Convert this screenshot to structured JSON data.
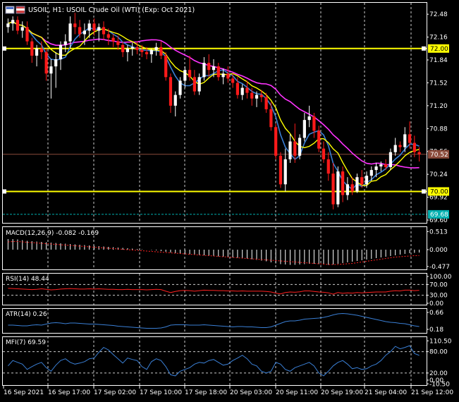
{
  "header": {
    "symbol": "USOIL",
    "timeframe": "H1",
    "title": "USOIL, H1:  USOIL Crude Oil (WTI) (Exp: Oct 2021)"
  },
  "colors": {
    "background": "#000000",
    "bull": "#ffffff",
    "bear": "#ff1a1a",
    "ma_fast": "#ffff00",
    "ma_mid": "#3a7fd5",
    "ma_slow": "#ff33ff",
    "hline": "#ffff00",
    "price_line": "#8a4a3a",
    "bid_line": "#00b0b0",
    "macd_signal": "#ff2020",
    "rsi": "#ff2020",
    "atr": "#3a7fd5",
    "mfi": "#3a7fd5",
    "grid": "#ffffff"
  },
  "chart_data": [
    {
      "type": "candlestick",
      "name": "USOIL, H1",
      "ylim": [
        69.6,
        72.6
      ],
      "yticks": [
        "72.48",
        "72.16",
        "71.84",
        "71.52",
        "71.20",
        "70.88",
        "70.56",
        "70.24",
        "69.92",
        "69.60"
      ],
      "hlines": [
        {
          "value": 72.0,
          "label": "72.00"
        },
        {
          "value": 70.0,
          "label": "70.00"
        }
      ],
      "current_price": {
        "value": 70.52,
        "label": "70.52"
      },
      "bid_line": {
        "value": 69.68,
        "label": "69.68"
      },
      "ohlc": [
        [
          72.3,
          72.42,
          72.22,
          72.35
        ],
        [
          72.35,
          72.45,
          72.25,
          72.4
        ],
        [
          72.4,
          72.45,
          72.2,
          72.25
        ],
        [
          72.25,
          72.38,
          72.15,
          72.3
        ],
        [
          72.3,
          72.38,
          72.05,
          72.1
        ],
        [
          72.1,
          72.15,
          71.8,
          71.9
        ],
        [
          71.9,
          72.05,
          71.75,
          72.0
        ],
        [
          72.0,
          72.1,
          71.85,
          71.95
        ],
        [
          71.95,
          72.0,
          71.55,
          71.65
        ],
        [
          71.65,
          71.85,
          71.3,
          71.75
        ],
        [
          71.75,
          71.95,
          71.45,
          71.85
        ],
        [
          71.85,
          72.1,
          71.7,
          72.05
        ],
        [
          72.05,
          72.2,
          71.95,
          72.1
        ],
        [
          72.1,
          72.45,
          72.0,
          72.35
        ],
        [
          72.35,
          72.5,
          72.2,
          72.3
        ],
        [
          72.3,
          72.4,
          72.15,
          72.2
        ],
        [
          72.2,
          72.35,
          72.05,
          72.25
        ],
        [
          72.25,
          72.4,
          72.15,
          72.35
        ],
        [
          72.35,
          72.42,
          72.18,
          72.25
        ],
        [
          72.25,
          72.35,
          72.1,
          72.3
        ],
        [
          72.3,
          72.38,
          72.12,
          72.2
        ],
        [
          72.2,
          72.28,
          72.05,
          72.15
        ],
        [
          72.15,
          72.2,
          72.02,
          72.1
        ],
        [
          72.1,
          72.18,
          71.98,
          72.05
        ],
        [
          72.05,
          72.1,
          71.88,
          71.95
        ],
        [
          71.95,
          72.05,
          71.82,
          72.0
        ],
        [
          72.0,
          72.08,
          71.9,
          72.02
        ],
        [
          72.02,
          72.1,
          71.92,
          71.98
        ],
        [
          71.98,
          72.05,
          71.88,
          71.95
        ],
        [
          71.95,
          72.02,
          71.85,
          71.92
        ],
        [
          71.92,
          72.0,
          71.8,
          71.98
        ],
        [
          71.98,
          72.08,
          71.9,
          72.02
        ],
        [
          72.02,
          72.1,
          71.85,
          71.9
        ],
        [
          71.9,
          71.95,
          71.55,
          71.6
        ],
        [
          71.6,
          71.65,
          71.1,
          71.2
        ],
        [
          71.2,
          71.4,
          71.05,
          71.35
        ],
        [
          71.35,
          71.6,
          71.3,
          71.55
        ],
        [
          71.55,
          71.75,
          71.45,
          71.7
        ],
        [
          71.7,
          71.9,
          71.55,
          71.6
        ],
        [
          71.6,
          71.7,
          71.35,
          71.4
        ],
        [
          71.4,
          71.65,
          71.35,
          71.6
        ],
        [
          71.6,
          71.88,
          71.55,
          71.8
        ],
        [
          71.8,
          71.92,
          71.6,
          71.7
        ],
        [
          71.7,
          71.85,
          71.6,
          71.75
        ],
        [
          71.75,
          71.8,
          71.55,
          71.6
        ],
        [
          71.6,
          71.72,
          71.5,
          71.65
        ],
        [
          71.65,
          71.75,
          71.52,
          71.58
        ],
        [
          71.58,
          71.65,
          71.45,
          71.52
        ],
        [
          71.52,
          71.6,
          71.3,
          71.35
        ],
        [
          71.35,
          71.5,
          71.28,
          71.45
        ],
        [
          71.45,
          71.55,
          71.3,
          71.38
        ],
        [
          71.38,
          71.45,
          71.2,
          71.3
        ],
        [
          71.3,
          71.4,
          71.18,
          71.35
        ],
        [
          71.35,
          71.42,
          71.25,
          71.32
        ],
        [
          71.32,
          71.38,
          71.1,
          71.15
        ],
        [
          71.15,
          71.25,
          70.85,
          70.9
        ],
        [
          70.9,
          70.95,
          70.45,
          70.5
        ],
        [
          70.5,
          70.55,
          70.05,
          70.1
        ],
        [
          70.1,
          70.6,
          70.0,
          70.45
        ],
        [
          70.45,
          70.8,
          70.4,
          70.7
        ],
        [
          70.7,
          70.95,
          70.4,
          70.5
        ],
        [
          70.5,
          70.8,
          70.45,
          70.75
        ],
        [
          70.75,
          71.1,
          70.7,
          71.0
        ],
        [
          71.0,
          71.2,
          70.9,
          71.05
        ],
        [
          71.05,
          71.1,
          70.75,
          70.85
        ],
        [
          70.85,
          70.92,
          70.55,
          70.6
        ],
        [
          70.6,
          70.7,
          70.4,
          70.45
        ],
        [
          70.45,
          70.55,
          70.15,
          70.25
        ],
        [
          70.25,
          70.4,
          69.75,
          69.82
        ],
        [
          69.82,
          70.35,
          69.78,
          70.28
        ],
        [
          70.28,
          70.35,
          69.85,
          69.95
        ],
        [
          69.95,
          70.2,
          69.88,
          70.1
        ],
        [
          70.1,
          70.2,
          69.95,
          70.0
        ],
        [
          70.0,
          70.25,
          69.98,
          70.2
        ],
        [
          70.2,
          70.3,
          70.05,
          70.1
        ],
        [
          70.1,
          70.28,
          70.05,
          70.22
        ],
        [
          70.22,
          70.35,
          70.15,
          70.3
        ],
        [
          70.3,
          70.4,
          70.2,
          70.35
        ],
        [
          70.35,
          70.42,
          70.28,
          70.38
        ],
        [
          70.38,
          70.45,
          70.3,
          70.34
        ],
        [
          70.34,
          70.6,
          70.3,
          70.55
        ],
        [
          70.55,
          70.75,
          70.5,
          70.65
        ],
        [
          70.65,
          70.7,
          70.55,
          70.62
        ],
        [
          70.62,
          70.9,
          70.55,
          70.8
        ],
        [
          70.8,
          70.98,
          70.6,
          70.68
        ],
        [
          70.68,
          70.78,
          70.48,
          70.55
        ],
        [
          70.55,
          70.62,
          70.42,
          70.52
        ]
      ]
    },
    {
      "type": "histogram",
      "name": "MACD(12,26,9)",
      "label": "MACD(12,26,9) -0.082 -0.169",
      "ylim": [
        -0.52,
        0.56
      ],
      "yticks": [
        "0.513",
        "0.000",
        "-0.477"
      ],
      "series": [
        {
          "name": "MACD",
          "values": [
            0.3,
            0.3,
            0.29,
            0.27,
            0.25,
            0.24,
            0.23,
            0.22,
            0.21,
            0.2,
            0.19,
            0.18,
            0.17,
            0.16,
            0.15,
            0.14,
            0.13,
            0.12,
            0.11,
            0.1,
            0.09,
            0.08,
            0.07,
            0.06,
            0.05,
            0.04,
            0.03,
            0.02,
            0.01,
            0.0,
            -0.01,
            -0.02,
            -0.04,
            -0.06,
            -0.08,
            -0.1,
            -0.11,
            -0.12,
            -0.13,
            -0.14,
            -0.15,
            -0.16,
            -0.17,
            -0.18,
            -0.19,
            -0.2,
            -0.21,
            -0.22,
            -0.23,
            -0.24,
            -0.25,
            -0.27,
            -0.29,
            -0.31,
            -0.33,
            -0.36,
            -0.39,
            -0.41,
            -0.42,
            -0.43,
            -0.43,
            -0.42,
            -0.41,
            -0.4,
            -0.4,
            -0.41,
            -0.42,
            -0.43,
            -0.42,
            -0.4,
            -0.38,
            -0.36,
            -0.34,
            -0.32,
            -0.3,
            -0.28,
            -0.26,
            -0.24,
            -0.22,
            -0.2,
            -0.18,
            -0.16,
            -0.14,
            -0.12,
            -0.1,
            -0.09,
            -0.082
          ]
        },
        {
          "name": "Signal",
          "values": [
            0.22,
            0.23,
            0.23,
            0.22,
            0.21,
            0.2,
            0.19,
            0.18,
            0.17,
            0.16,
            0.15,
            0.14,
            0.13,
            0.12,
            0.11,
            0.1,
            0.09,
            0.08,
            0.07,
            0.06,
            0.05,
            0.04,
            0.03,
            0.02,
            0.01,
            0.0,
            -0.01,
            -0.02,
            -0.03,
            -0.04,
            -0.05,
            -0.06,
            -0.07,
            -0.08,
            -0.09,
            -0.1,
            -0.11,
            -0.12,
            -0.13,
            -0.14,
            -0.15,
            -0.16,
            -0.17,
            -0.18,
            -0.19,
            -0.2,
            -0.21,
            -0.22,
            -0.23,
            -0.24,
            -0.25,
            -0.26,
            -0.27,
            -0.28,
            -0.29,
            -0.3,
            -0.31,
            -0.32,
            -0.33,
            -0.34,
            -0.35,
            -0.36,
            -0.37,
            -0.38,
            -0.39,
            -0.4,
            -0.41,
            -0.42,
            -0.42,
            -0.42,
            -0.41,
            -0.4,
            -0.39,
            -0.37,
            -0.35,
            -0.33,
            -0.31,
            -0.29,
            -0.27,
            -0.25,
            -0.23,
            -0.21,
            -0.2,
            -0.19,
            -0.18,
            -0.17,
            -0.169
          ]
        }
      ]
    },
    {
      "type": "line",
      "name": "RSI(14)",
      "label": "RSI(14) 48.44",
      "ylim": [
        0,
        100
      ],
      "yticks": [
        "100.00",
        "70.00",
        "30.00",
        "0.00"
      ],
      "levels": [
        70,
        30
      ],
      "values": [
        56,
        55,
        54,
        53,
        52,
        51,
        52,
        54,
        52,
        50,
        51,
        53,
        54,
        55,
        54,
        53,
        53,
        54,
        53,
        54,
        53,
        52,
        52,
        51,
        51,
        52,
        51,
        51,
        51,
        50,
        51,
        52,
        51,
        45,
        40,
        44,
        47,
        48,
        47,
        45,
        47,
        49,
        48,
        48,
        47,
        47,
        46,
        46,
        45,
        46,
        45,
        45,
        45,
        45,
        44,
        42,
        38,
        35,
        40,
        42,
        41,
        43,
        46,
        46,
        44,
        42,
        41,
        39,
        34,
        40,
        37,
        39,
        38,
        40,
        39,
        40,
        41,
        42,
        42,
        42,
        45,
        47,
        46,
        49,
        49,
        47,
        48.44
      ]
    },
    {
      "type": "line",
      "name": "ATR(14)",
      "label": "ATR(14) 0.26",
      "ylim": [
        0.12,
        0.7
      ],
      "yticks": [
        "0.66",
        "0.18"
      ],
      "values": [
        0.3,
        0.3,
        0.29,
        0.28,
        0.28,
        0.3,
        0.31,
        0.3,
        0.33,
        0.36,
        0.37,
        0.36,
        0.34,
        0.36,
        0.36,
        0.35,
        0.34,
        0.33,
        0.33,
        0.32,
        0.31,
        0.3,
        0.29,
        0.27,
        0.26,
        0.25,
        0.24,
        0.23,
        0.22,
        0.21,
        0.21,
        0.21,
        0.22,
        0.25,
        0.3,
        0.31,
        0.31,
        0.31,
        0.3,
        0.3,
        0.3,
        0.31,
        0.3,
        0.29,
        0.28,
        0.27,
        0.26,
        0.25,
        0.26,
        0.26,
        0.25,
        0.25,
        0.24,
        0.23,
        0.23,
        0.25,
        0.3,
        0.35,
        0.4,
        0.42,
        0.42,
        0.44,
        0.47,
        0.48,
        0.49,
        0.5,
        0.52,
        0.55,
        0.59,
        0.62,
        0.63,
        0.62,
        0.6,
        0.58,
        0.55,
        0.52,
        0.49,
        0.46,
        0.43,
        0.4,
        0.38,
        0.37,
        0.35,
        0.34,
        0.31,
        0.28,
        0.26
      ]
    },
    {
      "type": "line",
      "name": "MFI(7)",
      "label": "MFI(7) 69.59",
      "ylim": [
        -10,
        115
      ],
      "yticks": [
        "110.50",
        "80.00",
        "20.00",
        "0.00",
        "-10.50"
      ],
      "levels": [
        80,
        20
      ],
      "values": [
        40,
        55,
        50,
        45,
        30,
        38,
        45,
        50,
        35,
        25,
        42,
        55,
        60,
        50,
        45,
        48,
        52,
        60,
        62,
        78,
        92,
        85,
        72,
        60,
        48,
        62,
        58,
        55,
        38,
        30,
        52,
        60,
        55,
        38,
        15,
        12,
        25,
        30,
        35,
        45,
        50,
        48,
        55,
        58,
        50,
        42,
        45,
        55,
        62,
        70,
        60,
        45,
        40,
        25,
        20,
        25,
        50,
        45,
        30,
        25,
        35,
        40,
        45,
        50,
        40,
        20,
        12,
        25,
        40,
        50,
        55,
        45,
        32,
        35,
        30,
        32,
        40,
        45,
        55,
        70,
        80,
        95,
        88,
        92,
        97,
        75,
        69.59
      ]
    }
  ],
  "x_axis": {
    "labels": [
      "16 Sep 2021",
      "16 Sep 17:00",
      "17 Sep 02:00",
      "17 Sep 10:00",
      "17 Sep 18:00",
      "20 Sep 03:00",
      "20 Sep 11:00",
      "20 Sep 19:00",
      "21 Sep 04:00",
      "21 Sep 12:00"
    ]
  }
}
